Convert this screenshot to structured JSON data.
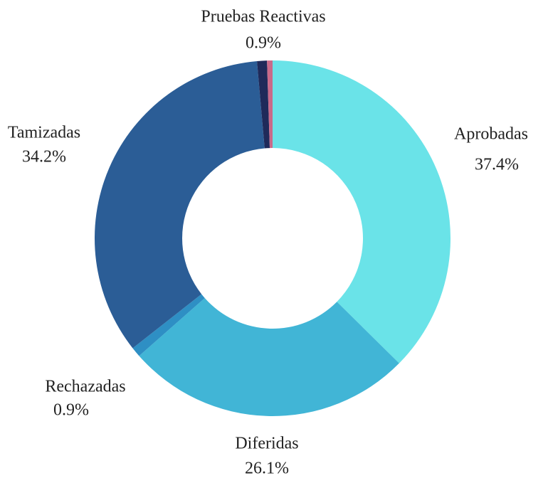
{
  "chart_data": {
    "type": "donut",
    "categories": [
      "Aprobadas",
      "Diferidas",
      "Rechazadas",
      "Tamizadas",
      "Pruebas Reactivas",
      null
    ],
    "values": [
      37.4,
      26.1,
      0.9,
      34.2,
      0.9,
      0.5
    ],
    "value_labels": [
      "37.4%",
      "26.1%",
      "0.9%",
      "34.2%",
      "0.9%",
      null
    ],
    "colors": [
      "#6ae3e8",
      "#41b5d6",
      "#2e8fc4",
      "#2b5d96",
      "#1f2a5a",
      "#c96a8a"
    ]
  }
}
